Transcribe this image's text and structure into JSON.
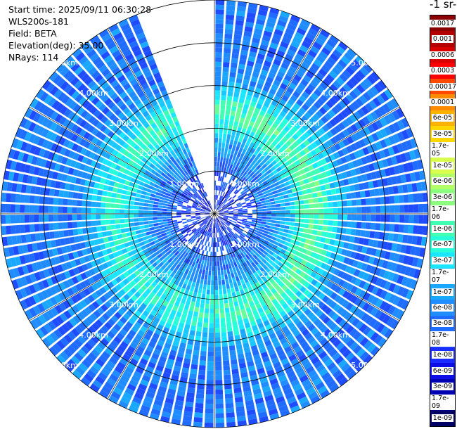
{
  "info": {
    "start_time": "Start time: 2025/09/11 06:30:28",
    "instrument": "WLS200s-181",
    "field": "Field: BETA",
    "elevation": "Elevation(deg): 35.00",
    "nrays": "NRays: 114"
  },
  "colorbar": {
    "title": "-1 sr-1",
    "levels": [
      "0.0017",
      "0.001",
      "0.0006",
      "0.0003",
      "0.00017",
      "0.0001",
      "6e-05",
      "3e-05",
      "1.7e-05",
      "1e-05",
      "6e-06",
      "3e-06",
      "1.7e-06",
      "1e-06",
      "6e-07",
      "3e-07",
      "1.7e-07",
      "1e-07",
      "6e-08",
      "3e-08",
      "1.7e-08",
      "1e-08",
      "6e-09",
      "3e-09",
      "1.7e-09",
      "1e-09"
    ],
    "colors": [
      "#8b0000",
      "#b30000",
      "#d90000",
      "#ff0000",
      "#ff4a00",
      "#ff8c00",
      "#ffb300",
      "#ffd700",
      "#ffff33",
      "#d9ff4d",
      "#b3ff66",
      "#8cff80",
      "#66ff99",
      "#40ffb3",
      "#26ffd9",
      "#1ae6ff",
      "#19c8ff",
      "#1aa8ff",
      "#1f8cff",
      "#1f6cff",
      "#1f4cff",
      "#1a2cff",
      "#0d0de6",
      "#0000b3",
      "#00008b",
      "#000066"
    ]
  },
  "chart_data": {
    "type": "heatmap",
    "projection": "polar PPI scan",
    "title": "",
    "field": "BETA",
    "elevation_deg": 35.0,
    "n_rays": 114,
    "range_unit": "km",
    "range_max_km": 5.0,
    "range_rings_km": [
      1,
      2,
      3,
      4,
      5
    ],
    "ring_labels": [
      "1.00km",
      "2.00km",
      "3.00km",
      "4.00km",
      "5.00km"
    ],
    "missing_sector_deg": [
      -22,
      0
    ],
    "data_summary": [
      {
        "range_km": [
          0.0,
          1.0
        ],
        "beta": "1e-08 to 3e-08",
        "note": "dark blue, sparse near center"
      },
      {
        "range_km": [
          1.0,
          1.7
        ],
        "beta": "3e-08 to 1e-07",
        "note": "blue"
      },
      {
        "range_km": [
          1.7,
          3.0
        ],
        "beta": "1e-07 to 6e-07",
        "note": "cyan / light green ring"
      },
      {
        "range_km": [
          3.0,
          5.0
        ],
        "beta": "3e-08 to 1e-07",
        "note": "blue"
      }
    ]
  }
}
